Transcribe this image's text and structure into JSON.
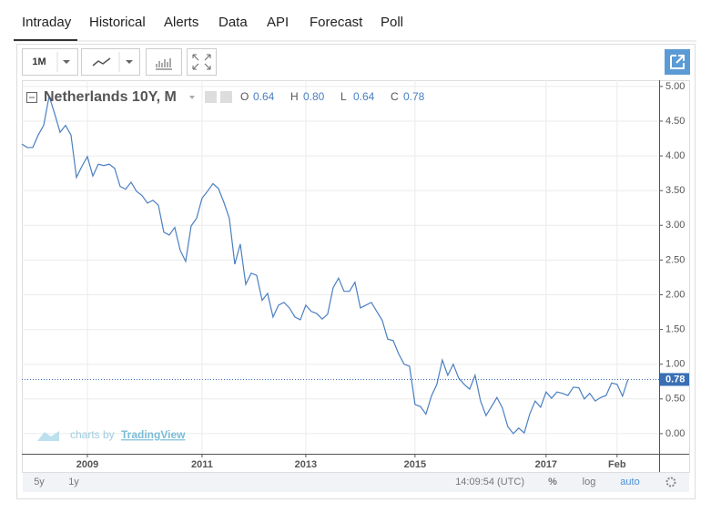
{
  "tabs": [
    "Intraday",
    "Historical",
    "Alerts",
    "Data",
    "API",
    "Forecast",
    "Poll"
  ],
  "toolbar": {
    "interval": "1M"
  },
  "bottom_bar": {
    "ranges": [
      "5y",
      "1y"
    ],
    "time": "14:09:54 (UTC)",
    "options": [
      "%",
      "log",
      "auto"
    ]
  },
  "watermark": {
    "prefix": "charts by",
    "brand": "TradingView"
  },
  "chart_data": {
    "type": "line",
    "title": "Netherlands 10Y, M",
    "ohlc": [
      {
        "name": "O",
        "value": 0.64,
        "label": "0.64"
      },
      {
        "name": "H",
        "value": 0.8,
        "label": "0.80"
      },
      {
        "name": "L",
        "value": 0.64,
        "label": "0.64"
      },
      {
        "name": "C",
        "value": 0.78,
        "label": "0.78"
      }
    ],
    "last_price": {
      "value": 0.78,
      "label": "0.78"
    },
    "color": "#4a7fc1",
    "values": [
      4.17,
      4.12,
      4.12,
      4.3,
      4.44,
      4.86,
      4.61,
      4.34,
      4.44,
      4.3,
      3.69,
      3.85,
      3.99,
      3.71,
      3.88,
      3.86,
      3.88,
      3.82,
      3.56,
      3.52,
      3.62,
      3.49,
      3.43,
      3.32,
      3.36,
      3.29,
      2.9,
      2.86,
      2.97,
      2.64,
      2.48,
      2.99,
      3.1,
      3.39,
      3.49,
      3.6,
      3.53,
      3.33,
      3.1,
      2.44,
      2.73,
      2.15,
      2.31,
      2.28,
      1.92,
      2.02,
      1.68,
      1.85,
      1.89,
      1.81,
      1.68,
      1.64,
      1.85,
      1.76,
      1.73,
      1.65,
      1.72,
      2.1,
      2.24,
      2.05,
      2.05,
      2.18,
      1.81,
      1.85,
      1.89,
      1.76,
      1.63,
      1.36,
      1.34,
      1.15,
      1.0,
      0.97,
      0.42,
      0.39,
      0.28,
      0.54,
      0.71,
      1.06,
      0.84,
      1.0,
      0.8,
      0.71,
      0.64,
      0.84,
      0.47,
      0.26,
      0.39,
      0.52,
      0.37,
      0.1,
      0.0,
      0.08,
      0.01,
      0.28,
      0.47,
      0.38,
      0.6,
      0.51,
      0.6,
      0.58,
      0.55,
      0.67,
      0.66,
      0.5,
      0.58,
      0.47,
      0.52,
      0.55,
      0.73,
      0.71,
      0.54,
      0.78
    ],
    "xlim": [
      0,
      116.7
    ],
    "xticks": [
      {
        "value": 12,
        "label": "2009"
      },
      {
        "value": 33,
        "label": "2011"
      },
      {
        "value": 52,
        "label": "2013"
      },
      {
        "value": 72,
        "label": "2015"
      },
      {
        "value": 96,
        "label": "2017"
      },
      {
        "value": 109,
        "label": "Feb"
      }
    ],
    "ylim": [
      -0.29,
      5.09
    ],
    "yticks": [
      {
        "value": 0,
        "label": "0.00"
      },
      {
        "value": 0.5,
        "label": "0.50"
      },
      {
        "value": 1,
        "label": "1.00"
      },
      {
        "value": 1.5,
        "label": "1.50"
      },
      {
        "value": 2,
        "label": "2.00"
      },
      {
        "value": 2.5,
        "label": "2.50"
      },
      {
        "value": 3,
        "label": "3.00"
      },
      {
        "value": 3.5,
        "label": "3.50"
      },
      {
        "value": 4,
        "label": "4.00"
      },
      {
        "value": 4.5,
        "label": "4.50"
      },
      {
        "value": 5,
        "label": "5.00"
      }
    ],
    "grid": true
  }
}
